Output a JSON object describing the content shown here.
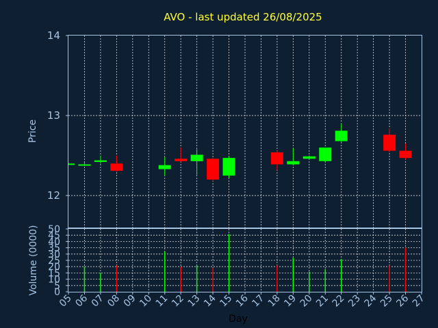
{
  "chart_data": [
    {
      "type": "candlestick",
      "title": "AVO - last updated 26/08/2025",
      "ylabel": "Price",
      "ylim": [
        11.6,
        14
      ],
      "yticks": [
        12,
        13,
        14
      ],
      "grid": true,
      "up_color": "#00ff00",
      "down_color": "#ff0000",
      "days": [
        "05",
        "06",
        "07",
        "08",
        "09",
        "10",
        "11",
        "12",
        "13",
        "14",
        "15",
        "16",
        "17",
        "18",
        "19",
        "20",
        "21",
        "22",
        "23",
        "24",
        "25",
        "26",
        "27"
      ],
      "candles": [
        {
          "day": "05",
          "open": 12.4,
          "high": 12.41,
          "low": 12.39,
          "close": 12.4
        },
        {
          "day": "06",
          "open": 12.38,
          "high": 12.41,
          "low": 12.37,
          "close": 12.39
        },
        {
          "day": "07",
          "open": 12.42,
          "high": 12.5,
          "low": 12.4,
          "close": 12.44
        },
        {
          "day": "08",
          "open": 12.4,
          "high": 12.5,
          "low": 12.3,
          "close": 12.31
        },
        {
          "day": "11",
          "open": 12.33,
          "high": 12.48,
          "low": 12.25,
          "close": 12.38
        },
        {
          "day": "12",
          "open": 12.46,
          "high": 12.6,
          "low": 12.42,
          "close": 12.43
        },
        {
          "day": "13",
          "open": 12.43,
          "high": 12.58,
          "low": 12.26,
          "close": 12.51
        },
        {
          "day": "14",
          "open": 12.46,
          "high": 12.47,
          "low": 12.18,
          "close": 12.2
        },
        {
          "day": "15",
          "open": 12.25,
          "high": 12.49,
          "low": 12.22,
          "close": 12.47
        },
        {
          "day": "18",
          "open": 12.54,
          "high": 12.56,
          "low": 12.32,
          "close": 12.39
        },
        {
          "day": "19",
          "open": 12.39,
          "high": 12.59,
          "low": 12.38,
          "close": 12.43
        },
        {
          "day": "20",
          "open": 12.46,
          "high": 12.5,
          "low": 12.45,
          "close": 12.49
        },
        {
          "day": "21",
          "open": 12.43,
          "high": 12.6,
          "low": 12.41,
          "close": 12.6
        },
        {
          "day": "22",
          "open": 12.68,
          "high": 12.9,
          "low": 12.67,
          "close": 12.81
        },
        {
          "day": "25",
          "open": 12.76,
          "high": 12.84,
          "low": 12.54,
          "close": 12.56
        },
        {
          "day": "26",
          "open": 12.56,
          "high": 12.65,
          "low": 12.45,
          "close": 12.47
        }
      ]
    },
    {
      "type": "bar",
      "xlabel": "Day",
      "ylabel": "Volume (0000)",
      "ylim": [
        0,
        50
      ],
      "yticks": [
        0,
        5,
        10,
        15,
        20,
        25,
        30,
        35,
        40,
        45,
        50
      ],
      "xticks": [
        "05",
        "06",
        "07",
        "08",
        "09",
        "10",
        "11",
        "12",
        "13",
        "14",
        "15",
        "16",
        "17",
        "18",
        "19",
        "20",
        "21",
        "22",
        "23",
        "24",
        "25",
        "26",
        "27"
      ],
      "grid": true,
      "bars": [
        {
          "day": "06",
          "value": 20,
          "color": "#00ff00"
        },
        {
          "day": "07",
          "value": 15,
          "color": "#00ff00"
        },
        {
          "day": "08",
          "value": 21,
          "color": "#ff0000"
        },
        {
          "day": "11",
          "value": 32,
          "color": "#00ff00"
        },
        {
          "day": "12",
          "value": 20,
          "color": "#ff0000"
        },
        {
          "day": "13",
          "value": 21,
          "color": "#00ff00"
        },
        {
          "day": "14",
          "value": 19,
          "color": "#ff0000"
        },
        {
          "day": "15",
          "value": 46,
          "color": "#00ff00"
        },
        {
          "day": "18",
          "value": 21,
          "color": "#ff0000"
        },
        {
          "day": "19",
          "value": 27,
          "color": "#00ff00"
        },
        {
          "day": "20",
          "value": 16,
          "color": "#00ff00"
        },
        {
          "day": "21",
          "value": 18,
          "color": "#00ff00"
        },
        {
          "day": "22",
          "value": 26,
          "color": "#00ff00"
        },
        {
          "day": "25",
          "value": 21,
          "color": "#ff0000"
        },
        {
          "day": "26",
          "value": 35,
          "color": "#ff0000"
        }
      ]
    }
  ]
}
